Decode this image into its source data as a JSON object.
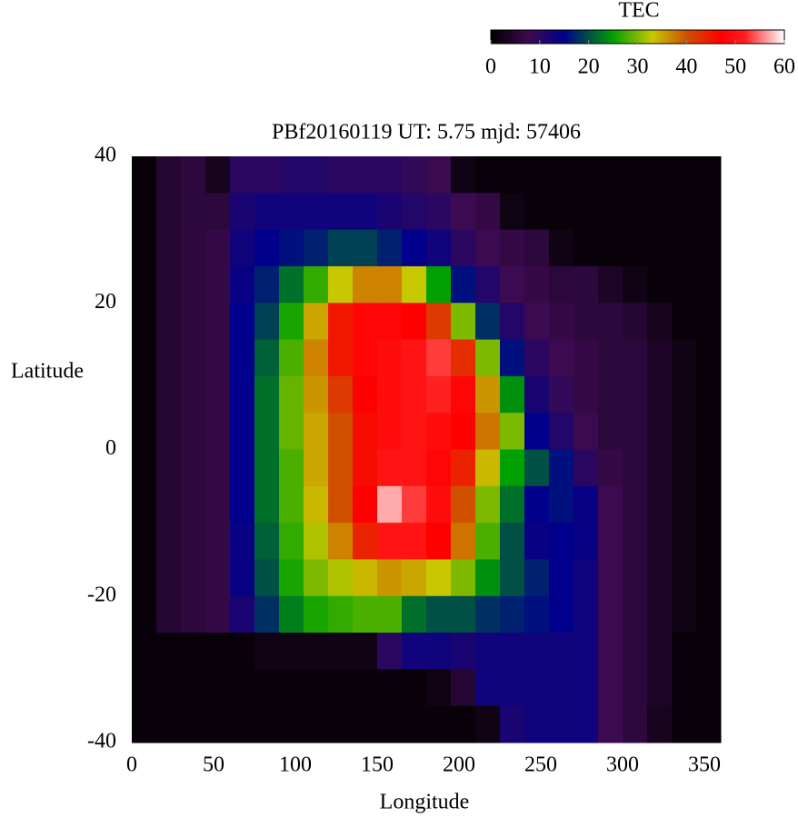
{
  "chart_data": {
    "type": "heatmap",
    "title": "PBf20160119  UT: 5.75  mjd: 57406",
    "x_label": "Longitude",
    "y_label": "Latitude",
    "xlim": [
      0,
      360
    ],
    "ylim": [
      -40,
      40
    ],
    "xticks": [
      0,
      50,
      100,
      150,
      200,
      250,
      300,
      350
    ],
    "yticks": [
      -40,
      -20,
      0,
      20,
      40
    ],
    "x": [
      7.5,
      22.5,
      37.5,
      52.5,
      67.5,
      82.5,
      97.5,
      112.5,
      127.5,
      142.5,
      157.5,
      172.5,
      187.5,
      202.5,
      217.5,
      232.5,
      247.5,
      262.5,
      277.5,
      292.5,
      307.5,
      322.5,
      337.5,
      352.5
    ],
    "y": [
      37.5,
      32.5,
      27.5,
      22.5,
      17.5,
      12.5,
      7.5,
      2.5,
      -2.5,
      -7.5,
      -12.5,
      -17.5,
      -22.5,
      -27.5,
      -32.5,
      -37.5
    ],
    "z": [
      [
        1,
        5,
        6,
        3,
        10,
        10,
        11,
        11,
        10,
        10,
        10,
        9,
        8,
        2,
        1,
        1,
        1,
        1,
        1,
        1,
        1,
        1,
        1,
        1
      ],
      [
        1,
        5,
        6,
        6,
        12,
        13,
        13,
        13,
        13,
        13,
        12,
        11,
        10,
        8,
        7,
        2,
        1,
        1,
        1,
        1,
        1,
        1,
        1,
        1
      ],
      [
        1,
        5,
        6,
        7,
        13,
        15,
        16,
        17,
        19,
        19,
        17,
        15,
        13,
        10,
        8,
        7,
        6,
        2,
        1,
        1,
        1,
        1,
        1,
        1
      ],
      [
        1,
        5,
        6,
        7,
        14,
        17,
        22,
        27,
        33,
        37,
        37,
        33,
        25,
        16,
        11,
        8,
        7,
        6,
        6,
        4,
        2,
        1,
        1,
        1
      ],
      [
        1,
        5,
        6,
        7,
        15,
        19,
        26,
        35,
        45,
        48,
        48,
        47,
        42,
        30,
        18,
        11,
        8,
        7,
        6,
        6,
        5,
        3,
        1,
        1
      ],
      [
        1,
        5,
        6,
        7,
        15,
        21,
        28,
        37,
        45,
        48,
        49,
        50,
        53,
        43,
        30,
        16,
        10,
        8,
        7,
        6,
        6,
        4,
        2,
        1
      ],
      [
        1,
        5,
        6,
        7,
        15,
        22,
        29,
        36,
        42,
        47,
        49,
        50,
        52,
        48,
        36,
        24,
        12,
        9,
        7,
        6,
        6,
        4,
        2,
        1
      ],
      [
        1,
        5,
        6,
        7,
        15,
        22,
        29,
        35,
        40,
        46,
        49,
        50,
        49,
        47,
        38,
        30,
        15,
        11,
        8,
        6,
        6,
        4,
        2,
        1
      ],
      [
        1,
        5,
        6,
        7,
        15,
        22,
        28,
        35,
        40,
        46,
        50,
        50,
        48,
        44,
        34,
        25,
        20,
        16,
        10,
        7,
        6,
        4,
        2,
        1
      ],
      [
        1,
        5,
        6,
        7,
        15,
        22,
        28,
        34,
        40,
        47,
        57,
        53,
        49,
        40,
        30,
        22,
        15,
        16,
        14,
        8,
        6,
        4,
        2,
        1
      ],
      [
        1,
        5,
        6,
        7,
        14,
        21,
        27,
        32,
        37,
        44,
        50,
        50,
        47,
        38,
        28,
        20,
        14,
        15,
        14,
        8,
        6,
        4,
        2,
        1
      ],
      [
        1,
        5,
        6,
        7,
        14,
        20,
        26,
        30,
        32,
        34,
        36,
        35,
        33,
        30,
        24,
        20,
        17,
        15,
        13,
        8,
        6,
        4,
        2,
        1
      ],
      [
        1,
        5,
        6,
        7,
        12,
        18,
        23,
        26,
        27,
        28,
        28,
        22,
        20,
        20,
        18,
        17,
        16,
        15,
        13,
        8,
        6,
        4,
        2,
        1
      ],
      [
        1,
        1,
        1,
        1,
        1,
        2,
        2,
        2,
        2,
        2,
        10,
        13,
        13,
        12,
        13,
        13,
        13,
        13,
        13,
        8,
        6,
        4,
        1,
        1
      ],
      [
        1,
        1,
        1,
        1,
        1,
        1,
        1,
        1,
        1,
        1,
        1,
        1,
        2,
        5,
        13,
        13,
        13,
        13,
        13,
        8,
        6,
        4,
        1,
        1
      ],
      [
        1,
        1,
        1,
        1,
        1,
        1,
        1,
        1,
        1,
        1,
        1,
        1,
        1,
        1,
        2,
        12,
        13,
        13,
        13,
        8,
        6,
        3,
        1,
        1
      ]
    ],
    "colorbar": {
      "title": "TEC",
      "lim": [
        0,
        60
      ],
      "ticks": [
        0,
        10,
        20,
        30,
        40,
        50,
        60
      ],
      "colorscale": [
        [
          0,
          "#000000"
        ],
        [
          8,
          "#3c0a50"
        ],
        [
          15,
          "#00008c"
        ],
        [
          25,
          "#00a000"
        ],
        [
          33,
          "#c8c800"
        ],
        [
          40,
          "#d05000"
        ],
        [
          47,
          "#ff0000"
        ],
        [
          52,
          "#ff2020"
        ],
        [
          60,
          "#ffffff"
        ]
      ]
    }
  }
}
